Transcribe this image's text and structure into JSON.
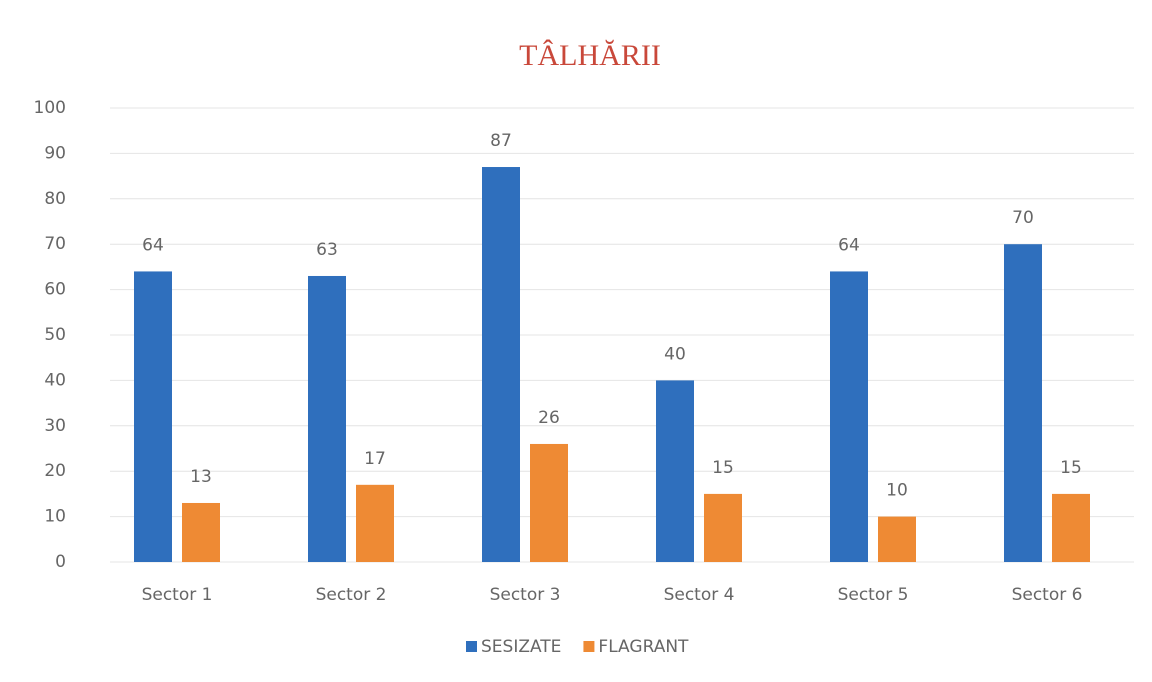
{
  "chart_data": {
    "type": "bar",
    "title": "TÂLHĂRII",
    "categories": [
      "Sector 1",
      "Sector 2",
      "Sector 3",
      "Sector 4",
      "Sector 5",
      "Sector 6"
    ],
    "series": [
      {
        "name": "SESIZATE",
        "color": "#2f6fbd",
        "values": [
          64,
          63,
          87,
          40,
          64,
          70
        ]
      },
      {
        "name": "FLAGRANT",
        "color": "#ee8a34",
        "values": [
          13,
          17,
          26,
          15,
          10,
          15
        ]
      }
    ],
    "ylim": [
      0,
      100
    ],
    "yticks": [
      0,
      10,
      20,
      30,
      40,
      50,
      60,
      70,
      80,
      90,
      100
    ],
    "grid": true,
    "legend": "bottom"
  }
}
